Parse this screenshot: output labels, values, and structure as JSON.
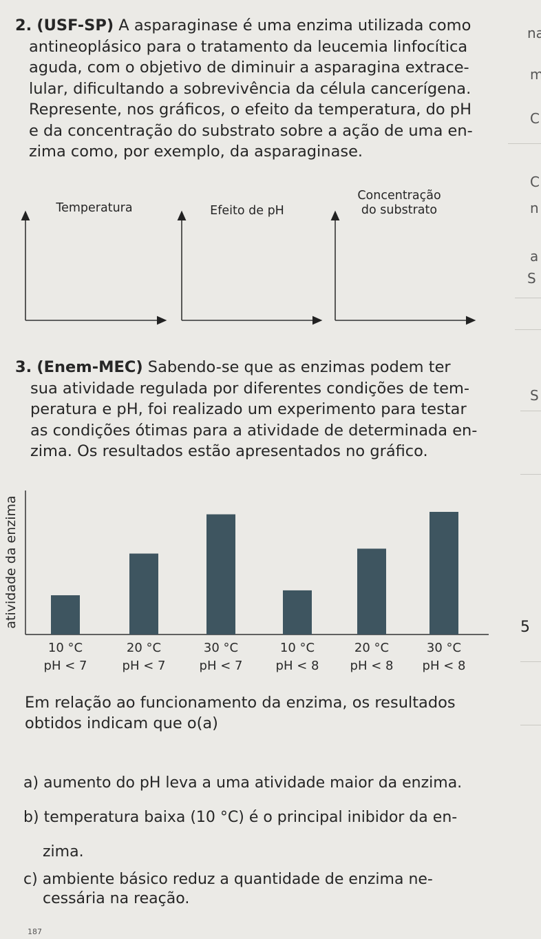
{
  "q2": {
    "number": "2.",
    "source": "(USF-SP)",
    "lines": [
      "A asparaginase é uma enzima utilizada como",
      "antineoplásico para o tratamento da leucemia linfocítica",
      "aguda, com o objetivo de diminuir a asparagina extrace-",
      "lular, dificultando a sobrevivência da célula cancerígena.",
      "Represente, nos gráficos, o efeito da temperatura, do pH",
      "e da concentração do substrato sobre a ação de uma en-",
      "zima como, por exemplo, da asparaginase."
    ],
    "graphs": [
      {
        "label": "Temperatura"
      },
      {
        "label": "Efeito de pH"
      },
      {
        "label_line1": "Concentração",
        "label_line2": "do substrato"
      }
    ]
  },
  "q3": {
    "number": "3.",
    "source": "(Enem-MEC)",
    "lines": [
      "Sabendo-se que as enzimas podem ter",
      "sua atividade regulada por diferentes condições de tem-",
      "peratura e pH, foi realizado um experimento para testar",
      "as condições ótimas para a atividade de determinada en-",
      "zima. Os resultados estão apresentados no gráfico."
    ]
  },
  "chart_data": {
    "type": "bar",
    "ylabel": "atividade da enzima",
    "categories": [
      {
        "temp": "10 °C",
        "ph": "pH < 7"
      },
      {
        "temp": "20 °C",
        "ph": "pH < 7"
      },
      {
        "temp": "30 °C",
        "ph": "pH < 7"
      },
      {
        "temp": "10 °C",
        "ph": "pH < 8"
      },
      {
        "temp": "20 °C",
        "ph": "pH < 8"
      },
      {
        "temp": "30 °C",
        "ph": "pH < 8"
      }
    ],
    "values": [
      32,
      66,
      98,
      36,
      70,
      100
    ],
    "ylim": [
      0,
      100
    ],
    "bar_color": "#3e5560",
    "grid": false,
    "legend": "none"
  },
  "bottom": {
    "lines": [
      "Em relação ao funcionamento da enzima, os resultados",
      "obtidos indicam que o(a)"
    ],
    "options": [
      {
        "letter": "a)",
        "text": "aumento do pH leva a uma atividade maior da enzima."
      },
      {
        "letter": "b)",
        "text": "temperatura baixa (10 °C) é o principal inibidor da en-"
      },
      {
        "letter": "",
        "text": "zima."
      },
      {
        "letter": "c)",
        "text": "ambiente básico reduz a quantidade de enzima ne-"
      },
      {
        "letter": "",
        "text": "cessária na reação."
      }
    ]
  },
  "margin": {
    "glyphs": [
      "na",
      "m",
      "C",
      "C",
      "n",
      "a",
      "S",
      "S",
      "5"
    ]
  },
  "footer": {
    "text": "187"
  }
}
